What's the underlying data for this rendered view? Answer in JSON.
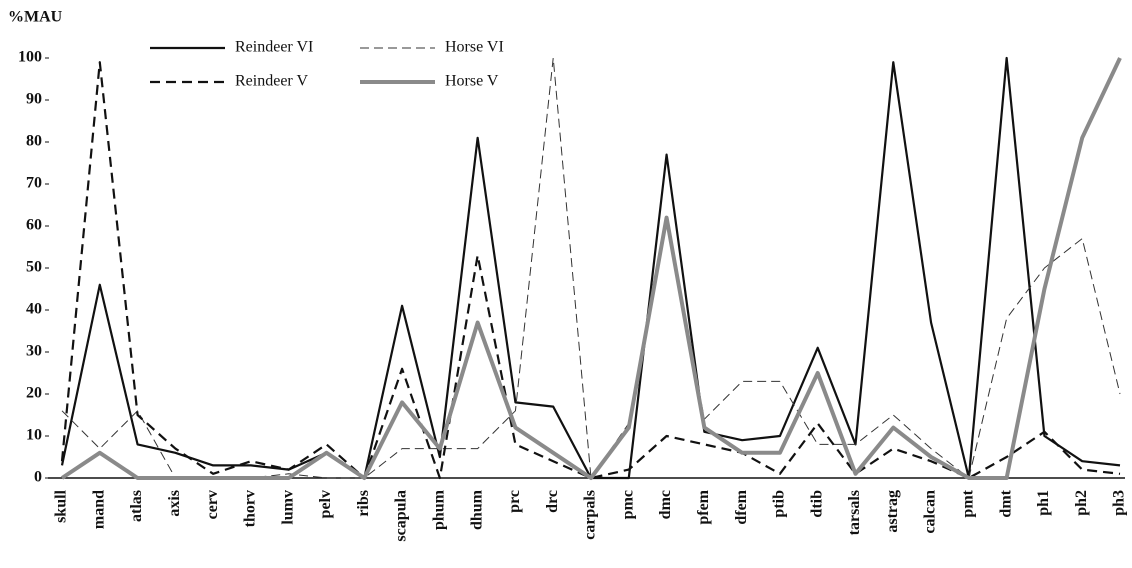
{
  "chart_data": {
    "type": "line",
    "y_label": "%MAU",
    "categories": [
      "skull",
      "mand",
      "atlas",
      "axis",
      "cerv",
      "thorv",
      "lumv",
      "pelv",
      "ribs",
      "scapula",
      "phum",
      "dhum",
      "prc",
      "drc",
      "carpals",
      "pmc",
      "dmc",
      "pfem",
      "dfem",
      "ptib",
      "dtib",
      "tarsals",
      "astrag",
      "calcan",
      "pmt",
      "dmt",
      "ph1",
      "ph2",
      "ph3"
    ],
    "series": [
      {
        "name": "Reindeer VI",
        "color": "#111111",
        "line_style": "solid",
        "line_width": "medium",
        "values": [
          3,
          46,
          8,
          6,
          3,
          3,
          2,
          6,
          0,
          41,
          5,
          81,
          18,
          17,
          0,
          0,
          77,
          11,
          9,
          10,
          31,
          8,
          99,
          37,
          0,
          100,
          10,
          4,
          3
        ]
      },
      {
        "name": "Horse VI",
        "color": "#333333",
        "line_style": "dashed",
        "line_width": "thin",
        "values": [
          16,
          7,
          16,
          0,
          0,
          0,
          1,
          0,
          0,
          7,
          7,
          7,
          16,
          100,
          0,
          13,
          62,
          14,
          23,
          23,
          8,
          8,
          15,
          7,
          0,
          38,
          50,
          57,
          20
        ]
      },
      {
        "name": "Reindeer V",
        "color": "#111111",
        "line_style": "dashed",
        "line_width": "medium",
        "values": [
          4,
          99,
          15,
          7,
          1,
          4,
          2,
          8,
          0,
          26,
          0,
          53,
          8,
          4,
          0,
          2,
          10,
          8,
          6,
          1,
          13,
          1,
          7,
          4,
          0,
          5,
          11,
          2,
          1
        ]
      },
      {
        "name": "Horse V",
        "color": "#8a8a8a",
        "line_style": "solid",
        "line_width": "thick",
        "values": [
          0,
          6,
          0,
          0,
          0,
          0,
          0,
          6,
          0,
          18,
          7,
          37,
          12,
          6,
          0,
          12,
          62,
          12,
          6,
          6,
          25,
          1,
          12,
          5,
          0,
          0,
          45,
          81,
          100
        ]
      }
    ],
    "ylim": [
      0,
      100
    ],
    "yticks": [
      0,
      10,
      20,
      30,
      40,
      50,
      60,
      70,
      80,
      90,
      100
    ],
    "legend": "top"
  }
}
